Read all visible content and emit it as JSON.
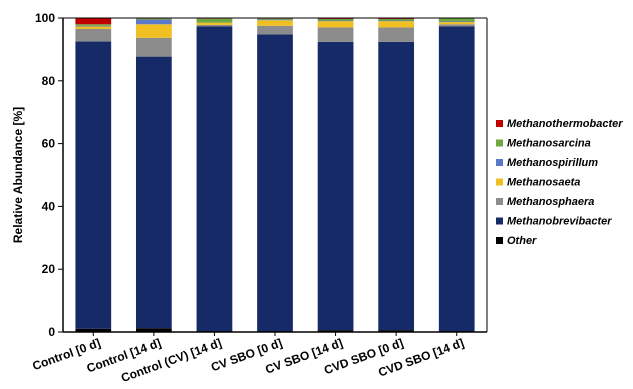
{
  "chart_data": {
    "type": "bar",
    "stacked": true,
    "title": "",
    "xlabel": "",
    "ylabel": "Relative Abundance [%]",
    "ylim": [
      0,
      100
    ],
    "yticks": [
      "0",
      "20",
      "40",
      "60",
      "80",
      "100"
    ],
    "categories": [
      "Control [0 d]",
      "Control [14 d]",
      "Control (CV) [14 d]",
      "CV SBO [0 d]",
      "CV SBO [14 d]",
      "CVD SBO [0 d]",
      "CVD SBO [14 d]"
    ],
    "legend_position": "right",
    "series": [
      {
        "name": "Other",
        "color": "#000000",
        "values": [
          1.0,
          1.2,
          0.3,
          0.3,
          0.6,
          0.6,
          0.3
        ]
      },
      {
        "name": "Methanobrevibacter",
        "color": "#152a66",
        "values": [
          91.5,
          86.5,
          97.0,
          94.5,
          91.8,
          91.8,
          97.0
        ]
      },
      {
        "name": "Methanosphaera",
        "color": "#8c8c8c",
        "values": [
          4.0,
          6.0,
          0.5,
          2.7,
          4.6,
          4.6,
          0.7
        ]
      },
      {
        "name": "Methanosaeta",
        "color": "#f0bf22",
        "values": [
          0.8,
          4.3,
          0.7,
          1.8,
          2.0,
          2.0,
          0.7
        ]
      },
      {
        "name": "Methanospirillum",
        "color": "#5b79c8",
        "values": [
          0.2,
          1.5,
          0.0,
          0.2,
          0.2,
          0.2,
          0.2
        ]
      },
      {
        "name": "Methanosarcina",
        "color": "#6fa843",
        "values": [
          0.5,
          0.3,
          1.3,
          0.3,
          0.5,
          0.5,
          1.0
        ]
      },
      {
        "name": "Methanothermobacter",
        "color": "#c00000",
        "values": [
          2.0,
          0.2,
          0.2,
          0.2,
          0.3,
          0.3,
          0.1
        ]
      }
    ],
    "legend_order": [
      "Methanothermobacter",
      "Methanosarcina",
      "Methanospirillum",
      "Methanosaeta",
      "Methanosphaera",
      "Methanobrevibacter",
      "Other"
    ],
    "grid": false
  }
}
